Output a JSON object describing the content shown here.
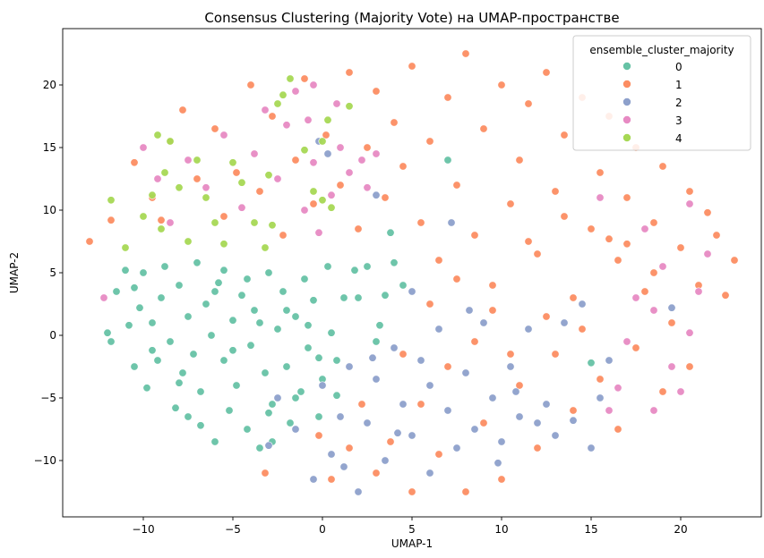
{
  "chart_data": {
    "type": "scatter",
    "title": "Consensus Clustering (Majority Vote) на UMAP-пространстве",
    "xlabel": "UMAP-1",
    "ylabel": "UMAP-2",
    "xlim": [
      -14.5,
      24.5
    ],
    "ylim": [
      -14.5,
      24.5
    ],
    "xticks": [
      "−10",
      "−5",
      "0",
      "5",
      "10",
      "15",
      "20"
    ],
    "yticks": [
      "−10",
      "−5",
      "0",
      "5",
      "10",
      "15",
      "20"
    ],
    "xtick_values": [
      -10,
      -5,
      0,
      5,
      10,
      15,
      20
    ],
    "ytick_values": [
      -10,
      -5,
      0,
      5,
      10,
      15,
      20
    ],
    "grid": false,
    "legend": {
      "title": "ensemble_cluster_majority",
      "placement": "top-right",
      "entries": [
        {
          "label": "0",
          "color": "#66c2a5"
        },
        {
          "label": "1",
          "color": "#fc8d62"
        },
        {
          "label": "2",
          "color": "#8da0cb"
        },
        {
          "label": "3",
          "color": "#e78ac3"
        },
        {
          "label": "4",
          "color": "#a6d854"
        }
      ]
    },
    "series": [
      {
        "name": "0",
        "color": "#66c2a5",
        "points": [
          [
            -12.0,
            0.2
          ],
          [
            -11.5,
            3.5
          ],
          [
            -11.0,
            5.2
          ],
          [
            -10.8,
            0.8
          ],
          [
            -10.5,
            -2.5
          ],
          [
            -10.2,
            2.2
          ],
          [
            -10.0,
            5.0
          ],
          [
            -9.8,
            -4.2
          ],
          [
            -9.5,
            1.0
          ],
          [
            -9.2,
            -2.0
          ],
          [
            -9.0,
            3.0
          ],
          [
            -8.8,
            5.5
          ],
          [
            -8.5,
            -0.5
          ],
          [
            -8.2,
            -5.8
          ],
          [
            -8.0,
            4.0
          ],
          [
            -7.8,
            -3.0
          ],
          [
            -7.5,
            1.5
          ],
          [
            -7.2,
            -1.5
          ],
          [
            -7.0,
            5.8
          ],
          [
            -6.8,
            -4.5
          ],
          [
            -6.5,
            2.5
          ],
          [
            -6.2,
            0.0
          ],
          [
            -6.0,
            -8.5
          ],
          [
            -5.8,
            4.2
          ],
          [
            -5.5,
            -2.0
          ],
          [
            -5.2,
            -6.0
          ],
          [
            -5.0,
            1.2
          ],
          [
            -4.8,
            -4.0
          ],
          [
            -4.5,
            3.2
          ],
          [
            -4.2,
            -7.5
          ],
          [
            -4.0,
            -0.8
          ],
          [
            -3.8,
            2.0
          ],
          [
            -3.5,
            -9.0
          ],
          [
            -3.2,
            -3.0
          ],
          [
            -3.0,
            5.0
          ],
          [
            -2.8,
            -5.5
          ],
          [
            -2.5,
            0.5
          ],
          [
            -2.2,
            3.5
          ],
          [
            -2.0,
            -2.5
          ],
          [
            -1.8,
            -7.0
          ],
          [
            -1.5,
            1.5
          ],
          [
            -1.2,
            -4.5
          ],
          [
            -1.0,
            4.5
          ],
          [
            -0.8,
            -1.0
          ],
          [
            -0.5,
            2.8
          ],
          [
            -0.2,
            -6.5
          ],
          [
            0.0,
            -3.5
          ],
          [
            0.3,
            5.5
          ],
          [
            0.5,
            0.2
          ],
          [
            0.8,
            -2.0
          ],
          [
            1.2,
            3.0
          ],
          [
            1.8,
            5.2
          ],
          [
            2.5,
            5.5
          ],
          [
            3.0,
            -0.5
          ],
          [
            3.5,
            3.2
          ],
          [
            3.8,
            8.2
          ],
          [
            4.0,
            5.8
          ],
          [
            4.5,
            4.0
          ],
          [
            7.0,
            14.0
          ],
          [
            15.0,
            -2.2
          ],
          [
            -9.5,
            -1.2
          ],
          [
            -8.0,
            -3.8
          ],
          [
            -6.8,
            -7.2
          ],
          [
            -6.0,
            3.5
          ],
          [
            -5.0,
            -1.2
          ],
          [
            -4.2,
            4.5
          ],
          [
            -3.5,
            1.0
          ],
          [
            -2.8,
            -8.5
          ],
          [
            -2.0,
            2.0
          ],
          [
            -1.5,
            -5.0
          ],
          [
            -0.8,
            0.8
          ],
          [
            -0.2,
            -1.8
          ],
          [
            0.8,
            -4.8
          ],
          [
            2.0,
            3.0
          ],
          [
            3.2,
            0.8
          ],
          [
            -11.8,
            -0.5
          ],
          [
            -10.5,
            3.8
          ],
          [
            -7.5,
            -6.5
          ],
          [
            -5.5,
            5.2
          ],
          [
            -3.0,
            -6.2
          ]
        ]
      },
      {
        "name": "1",
        "color": "#fc8d62",
        "points": [
          [
            -13.0,
            7.5
          ],
          [
            -11.8,
            9.2
          ],
          [
            -10.5,
            13.8
          ],
          [
            -9.5,
            11.0
          ],
          [
            -8.5,
            15.5
          ],
          [
            -7.8,
            18.0
          ],
          [
            -7.0,
            12.5
          ],
          [
            -6.0,
            16.5
          ],
          [
            -5.5,
            9.5
          ],
          [
            -4.8,
            13.0
          ],
          [
            -4.0,
            20.0
          ],
          [
            -3.5,
            11.5
          ],
          [
            -2.8,
            17.5
          ],
          [
            -2.2,
            8.0
          ],
          [
            -1.5,
            14.0
          ],
          [
            -1.0,
            20.5
          ],
          [
            -0.5,
            10.5
          ],
          [
            0.2,
            16.0
          ],
          [
            1.0,
            12.0
          ],
          [
            1.5,
            21.0
          ],
          [
            2.0,
            8.5
          ],
          [
            2.5,
            15.0
          ],
          [
            3.0,
            19.5
          ],
          [
            3.5,
            11.0
          ],
          [
            4.0,
            17.0
          ],
          [
            4.5,
            13.5
          ],
          [
            5.0,
            21.5
          ],
          [
            5.5,
            9.0
          ],
          [
            6.0,
            15.5
          ],
          [
            6.5,
            6.0
          ],
          [
            7.0,
            19.0
          ],
          [
            7.5,
            12.0
          ],
          [
            8.0,
            22.5
          ],
          [
            8.5,
            8.0
          ],
          [
            9.0,
            16.5
          ],
          [
            9.5,
            4.0
          ],
          [
            10.0,
            20.0
          ],
          [
            10.5,
            10.5
          ],
          [
            11.0,
            14.0
          ],
          [
            11.5,
            18.5
          ],
          [
            12.0,
            6.5
          ],
          [
            12.5,
            21.0
          ],
          [
            13.0,
            11.5
          ],
          [
            13.5,
            16.0
          ],
          [
            14.0,
            3.0
          ],
          [
            14.5,
            19.0
          ],
          [
            15.0,
            8.5
          ],
          [
            15.5,
            13.0
          ],
          [
            16.0,
            17.5
          ],
          [
            16.5,
            6.0
          ],
          [
            17.0,
            11.0
          ],
          [
            17.5,
            15.0
          ],
          [
            18.0,
            3.5
          ],
          [
            18.5,
            9.0
          ],
          [
            19.0,
            13.5
          ],
          [
            19.5,
            1.0
          ],
          [
            20.0,
            7.0
          ],
          [
            20.5,
            11.5
          ],
          [
            21.0,
            4.0
          ],
          [
            22.0,
            8.0
          ],
          [
            23.0,
            6.0
          ],
          [
            22.5,
            3.2
          ],
          [
            20.5,
            -2.5
          ],
          [
            19.0,
            -4.5
          ],
          [
            17.5,
            -1.0
          ],
          [
            16.5,
            -7.5
          ],
          [
            15.5,
            -3.5
          ],
          [
            14.0,
            -6.0
          ],
          [
            13.0,
            -1.5
          ],
          [
            12.0,
            -9.0
          ],
          [
            11.0,
            -4.0
          ],
          [
            10.0,
            -11.5
          ],
          [
            9.0,
            -7.0
          ],
          [
            8.0,
            -12.5
          ],
          [
            7.0,
            -2.5
          ],
          [
            6.5,
            -9.5
          ],
          [
            5.5,
            -5.5
          ],
          [
            5.0,
            -12.5
          ],
          [
            4.5,
            -1.5
          ],
          [
            3.8,
            -8.5
          ],
          [
            3.0,
            -11.0
          ],
          [
            2.2,
            -5.5
          ],
          [
            1.5,
            -9.0
          ],
          [
            0.5,
            -11.5
          ],
          [
            -0.2,
            -8.0
          ],
          [
            -3.2,
            -11.0
          ],
          [
            9.5,
            2.0
          ],
          [
            10.5,
            -1.5
          ],
          [
            12.5,
            1.5
          ],
          [
            6.0,
            2.5
          ],
          [
            7.5,
            4.5
          ],
          [
            8.5,
            -0.5
          ],
          [
            11.5,
            7.5
          ],
          [
            13.5,
            9.5
          ],
          [
            16.0,
            7.7
          ],
          [
            17.0,
            7.3
          ],
          [
            18.5,
            5.0
          ],
          [
            14.5,
            0.5
          ],
          [
            21.5,
            9.8
          ],
          [
            -9.0,
            9.2
          ]
        ]
      },
      {
        "name": "2",
        "color": "#8da0cb",
        "points": [
          [
            -3.0,
            -8.8
          ],
          [
            -2.5,
            -5.0
          ],
          [
            -1.5,
            -7.5
          ],
          [
            -0.5,
            -11.5
          ],
          [
            0.0,
            -4.0
          ],
          [
            0.5,
            -9.5
          ],
          [
            1.0,
            -6.5
          ],
          [
            1.5,
            -2.5
          ],
          [
            2.0,
            -12.5
          ],
          [
            2.5,
            -7.0
          ],
          [
            3.0,
            -3.5
          ],
          [
            3.5,
            -10.0
          ],
          [
            4.0,
            -1.0
          ],
          [
            4.5,
            -5.5
          ],
          [
            5.0,
            -8.0
          ],
          [
            5.5,
            -2.0
          ],
          [
            6.0,
            -11.0
          ],
          [
            6.5,
            0.5
          ],
          [
            7.0,
            -6.0
          ],
          [
            7.5,
            -9.0
          ],
          [
            8.0,
            -3.0
          ],
          [
            8.5,
            -7.5
          ],
          [
            9.0,
            1.0
          ],
          [
            9.5,
            -5.0
          ],
          [
            10.0,
            -8.5
          ],
          [
            10.5,
            -2.5
          ],
          [
            11.0,
            -6.5
          ],
          [
            11.5,
            0.5
          ],
          [
            12.5,
            -5.5
          ],
          [
            13.0,
            -8.0
          ],
          [
            14.0,
            -6.8
          ],
          [
            15.0,
            -9.0
          ],
          [
            16.0,
            -2.0
          ],
          [
            14.5,
            2.5
          ],
          [
            13.5,
            1.0
          ],
          [
            12.0,
            -7.0
          ],
          [
            6.0,
            -4.0
          ],
          [
            4.2,
            -7.8
          ],
          [
            8.2,
            2.0
          ],
          [
            15.5,
            -5.0
          ],
          [
            19.5,
            2.2
          ],
          [
            5.0,
            3.5
          ],
          [
            -0.2,
            15.5
          ],
          [
            0.3,
            14.5
          ],
          [
            3.0,
            11.2
          ],
          [
            7.2,
            9.0
          ],
          [
            2.8,
            -1.8
          ],
          [
            9.8,
            -10.2
          ],
          [
            1.2,
            -10.5
          ],
          [
            10.8,
            -4.5
          ]
        ]
      },
      {
        "name": "3",
        "color": "#e78ac3",
        "points": [
          [
            -12.2,
            3.0
          ],
          [
            -10.0,
            15.0
          ],
          [
            -9.2,
            12.5
          ],
          [
            -8.5,
            9.0
          ],
          [
            -7.5,
            14.0
          ],
          [
            -6.5,
            11.8
          ],
          [
            -5.5,
            16.0
          ],
          [
            -4.5,
            10.2
          ],
          [
            -3.8,
            14.5
          ],
          [
            -3.2,
            18.0
          ],
          [
            -2.5,
            12.5
          ],
          [
            -2.0,
            16.8
          ],
          [
            -1.5,
            19.5
          ],
          [
            -1.0,
            10.0
          ],
          [
            -0.5,
            13.8
          ],
          [
            -0.2,
            8.2
          ],
          [
            0.5,
            11.2
          ],
          [
            1.0,
            15.0
          ],
          [
            1.5,
            13.0
          ],
          [
            2.2,
            14.0
          ],
          [
            0.8,
            18.5
          ],
          [
            -0.8,
            17.2
          ],
          [
            2.5,
            11.8
          ],
          [
            3.0,
            14.5
          ],
          [
            -0.5,
            20.0
          ],
          [
            15.5,
            11.0
          ],
          [
            17.0,
            -0.5
          ],
          [
            18.5,
            2.0
          ],
          [
            19.5,
            -2.5
          ],
          [
            20.0,
            -4.5
          ],
          [
            21.0,
            3.5
          ],
          [
            21.5,
            6.5
          ],
          [
            19.0,
            5.5
          ],
          [
            18.0,
            8.5
          ],
          [
            20.5,
            10.5
          ],
          [
            18.5,
            -6.0
          ],
          [
            16.5,
            -4.2
          ],
          [
            20.5,
            0.2
          ],
          [
            17.5,
            3.0
          ],
          [
            16.0,
            -6.0
          ]
        ]
      },
      {
        "name": "4",
        "color": "#a6d854",
        "points": [
          [
            -11.8,
            10.8
          ],
          [
            -11.0,
            7.0
          ],
          [
            -10.0,
            9.5
          ],
          [
            -9.5,
            11.2
          ],
          [
            -9.0,
            8.5
          ],
          [
            -8.8,
            13.0
          ],
          [
            -8.5,
            15.5
          ],
          [
            -8.0,
            11.8
          ],
          [
            -7.5,
            7.5
          ],
          [
            -6.5,
            11.0
          ],
          [
            -6.0,
            9.0
          ],
          [
            -5.5,
            7.3
          ],
          [
            -5.0,
            13.8
          ],
          [
            -4.5,
            12.2
          ],
          [
            -3.8,
            9.0
          ],
          [
            -3.2,
            7.0
          ],
          [
            -2.5,
            18.5
          ],
          [
            -2.2,
            19.2
          ],
          [
            -1.8,
            20.5
          ],
          [
            -1.0,
            14.8
          ],
          [
            -0.5,
            11.5
          ],
          [
            0.0,
            15.5
          ],
          [
            0.3,
            17.2
          ],
          [
            0.5,
            10.2
          ],
          [
            1.5,
            18.3
          ],
          [
            -3.0,
            12.8
          ],
          [
            -7.0,
            14.0
          ],
          [
            -9.2,
            16.0
          ],
          [
            -2.8,
            8.8
          ],
          [
            0.0,
            10.8
          ]
        ]
      }
    ]
  }
}
